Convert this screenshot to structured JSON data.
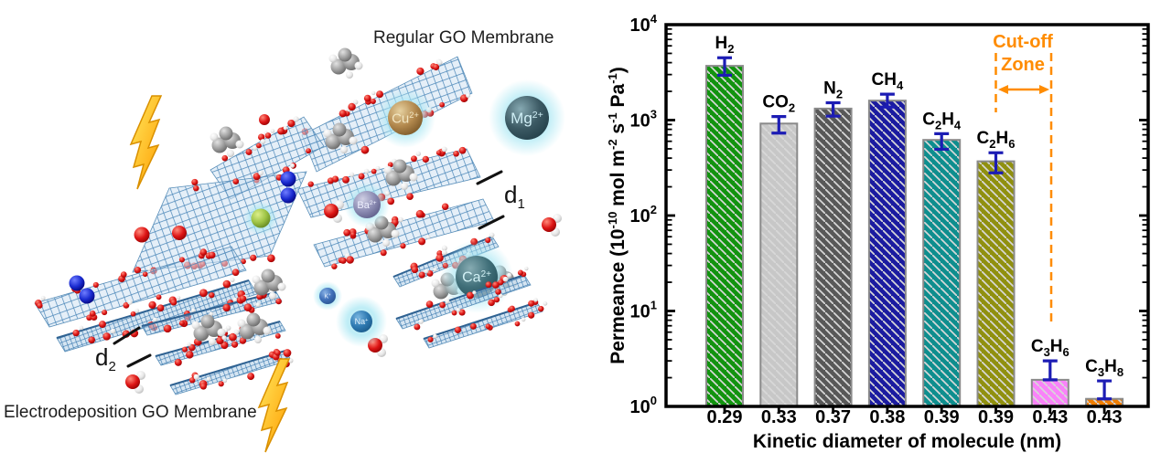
{
  "left_panel": {
    "regular_membrane_label": "Regular GO Membrane",
    "electro_membrane_label": "Electrodeposition GO Membrane",
    "spacing_label_1": {
      "base": "d",
      "sub": "1"
    },
    "spacing_label_2": {
      "base": "d",
      "sub": "2"
    },
    "ions": [
      {
        "id": "cu",
        "label": "Cu",
        "charge": "2+"
      },
      {
        "id": "mg",
        "label": "Mg",
        "charge": "2+"
      },
      {
        "id": "ba",
        "label": "Ba",
        "charge": "2+"
      },
      {
        "id": "ca",
        "label": "Ca",
        "charge": "2+"
      },
      {
        "id": "na",
        "label": "Na",
        "charge": "+"
      },
      {
        "id": "k",
        "label": "K",
        "charge": "+"
      }
    ]
  },
  "chart_data": {
    "type": "bar",
    "title": "",
    "xlabel": "Kinetic diameter of molecule (nm)",
    "ylabel": "Permeance (10⁻¹⁰ mol m⁻² s⁻¹ Pa⁻¹)",
    "ylabel_parts": [
      [
        "Permeance (10",
        0
      ],
      [
        "-10",
        1
      ],
      [
        " mol m",
        0
      ],
      [
        "-2",
        1
      ],
      [
        " s",
        0
      ],
      [
        "-1",
        1
      ],
      [
        " Pa",
        0
      ],
      [
        "-1",
        1
      ],
      [
        ")",
        0
      ]
    ],
    "y_scale": "log",
    "ylim": [
      1,
      10000
    ],
    "y_ticks": [
      [
        "10",
        "0"
      ],
      [
        "10",
        "1"
      ],
      [
        "10",
        "2"
      ],
      [
        "10",
        "3"
      ],
      [
        "10",
        "4"
      ]
    ],
    "categories": [
      "0.29",
      "0.33",
      "0.37",
      "0.38",
      "0.39",
      "0.39",
      "0.43",
      "0.43"
    ],
    "gases": [
      {
        "name": "H2",
        "label_parts": [
          [
            "H",
            0
          ],
          [
            "2",
            1
          ]
        ],
        "value": 3700,
        "err_high": 4500,
        "err_low": 2950,
        "color": "#12930f"
      },
      {
        "name": "CO2",
        "label_parts": [
          [
            "CO",
            0
          ],
          [
            "2",
            1
          ]
        ],
        "value": 920,
        "err_high": 1090,
        "err_low": 730,
        "color": "#c7c7c7"
      },
      {
        "name": "N2",
        "label_parts": [
          [
            "N",
            0
          ],
          [
            "2",
            1
          ]
        ],
        "value": 1320,
        "err_high": 1520,
        "err_low": 1100,
        "color": "#585858"
      },
      {
        "name": "CH4",
        "label_parts": [
          [
            "CH",
            0
          ],
          [
            "4",
            1
          ]
        ],
        "value": 1600,
        "err_high": 1870,
        "err_low": 1370,
        "color": "#1b1ba0"
      },
      {
        "name": "C2H4",
        "label_parts": [
          [
            "C",
            0
          ],
          [
            "2",
            1
          ],
          [
            "H",
            0
          ],
          [
            "4",
            1
          ]
        ],
        "value": 620,
        "err_high": 720,
        "err_low": 495,
        "color": "#0e8e8e"
      },
      {
        "name": "C2H6",
        "label_parts": [
          [
            "C",
            0
          ],
          [
            "2",
            1
          ],
          [
            "H",
            0
          ],
          [
            "6",
            1
          ]
        ],
        "value": 370,
        "err_high": 455,
        "err_low": 280,
        "color": "#90900f"
      },
      {
        "name": "C3H6",
        "label_parts": [
          [
            "C",
            0
          ],
          [
            "3",
            1
          ],
          [
            "H",
            0
          ],
          [
            "6",
            1
          ]
        ],
        "value": 1.9,
        "err_high": 3.0,
        "err_low": 1.9,
        "color": "#f982f9"
      },
      {
        "name": "C3H8",
        "label_parts": [
          [
            "C",
            0
          ],
          [
            "3",
            1
          ],
          [
            "H",
            0
          ],
          [
            "8",
            1
          ]
        ],
        "value": 1.2,
        "err_high": 1.85,
        "err_low": 1.2,
        "color": "#ef7d00"
      }
    ],
    "annotation": {
      "line1": "Cut-off",
      "line2": "Zone",
      "color": "#ff8c00"
    },
    "error_bar_color": "#1c1cb4",
    "bar_edge_color": "#8a8a8a"
  }
}
